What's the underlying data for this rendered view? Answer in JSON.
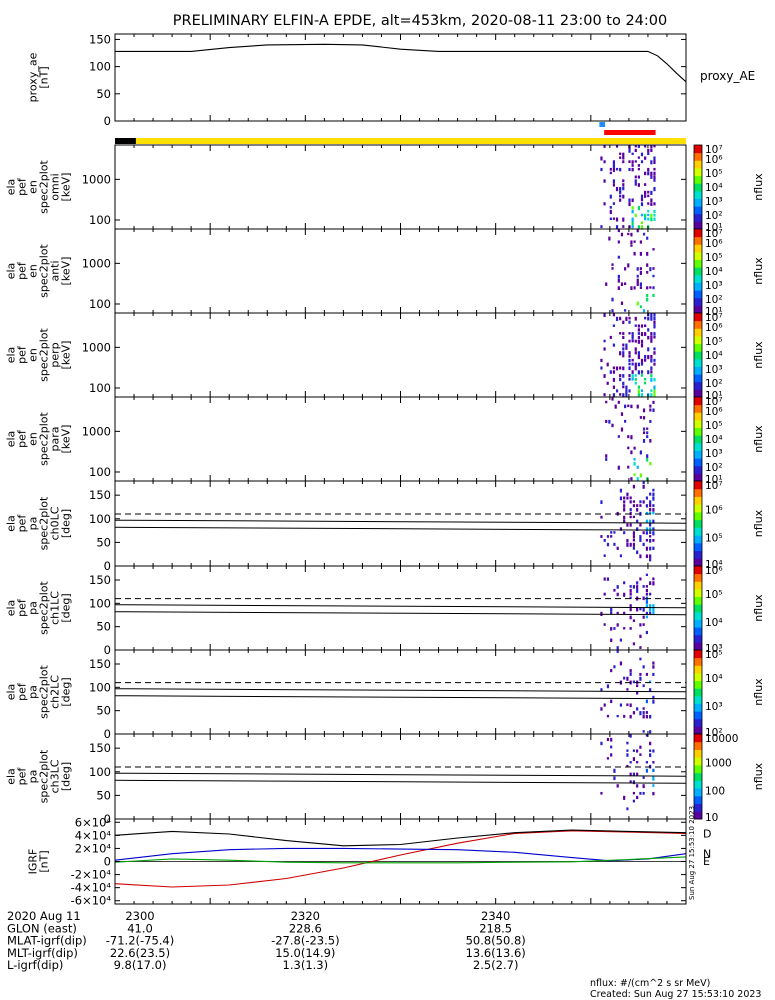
{
  "title": "PRELIMINARY ELFIN-A EPDE, alt=453km, 2020-08-11 23:00 to 24:00",
  "footer": {
    "units": "nflux: #/(cm^2 s sr MeV)",
    "created": "Created: Sun Aug 27 15:53:10 2023",
    "side_stamp": "Sun Aug 27 15:53:10 2023"
  },
  "colorbar_label": "nflux",
  "colorbar_colors": [
    "#ffffff",
    "#5a00a0",
    "#2a20d0",
    "#0060ff",
    "#00b0ff",
    "#00e0d0",
    "#00e060",
    "#60ff00",
    "#d0ff00",
    "#ffd000",
    "#ff7000",
    "#e00000"
  ],
  "orbit_table": {
    "rows": [
      {
        "label": "2020 Aug 11",
        "values": [
          "2300",
          "2320",
          "2340"
        ]
      },
      {
        "label": "GLON (east)",
        "values": [
          "41.0",
          "228.6",
          "218.5"
        ]
      },
      {
        "label": "MLAT-igrf(dip)",
        "values": [
          "-71.2(-75.4)",
          "-27.8(-23.5)",
          "50.8(50.8)"
        ]
      },
      {
        "label": "MLT-igrf(dip)",
        "values": [
          "22.6(23.5)",
          "15.0(14.9)",
          "13.6(13.6)"
        ]
      },
      {
        "label": "L-igrf(dip)",
        "values": [
          "9.8(17.0)",
          "1.3(1.3)",
          "2.5(2.7)"
        ]
      }
    ]
  },
  "chart_data": [
    {
      "id": "proxy_ae",
      "type": "line",
      "ylabel_lines": [
        "proxy_ae",
        "[nT]"
      ],
      "ylim": [
        0,
        160
      ],
      "yticks": [
        "0",
        "50",
        "100",
        "150"
      ],
      "legend": "proxy_AE",
      "x_minutes": [
        0,
        8,
        12,
        16,
        22,
        26,
        30,
        34,
        40,
        45,
        50,
        54,
        56,
        57,
        58,
        59,
        60
      ],
      "y": [
        128,
        128,
        135,
        140,
        141,
        140,
        132,
        128,
        128,
        128,
        128,
        128,
        128,
        120,
        105,
        88,
        72
      ]
    },
    {
      "id": "status_bars",
      "type": "bar",
      "bars": [
        {
          "start": 0,
          "end": 2.2,
          "color": "#000000"
        },
        {
          "start": 2.2,
          "end": 60,
          "color": "#ffe000"
        },
        {
          "start": 51.4,
          "end": 56.8,
          "color": "#ff0000"
        },
        {
          "start": 50.9,
          "end": 51.5,
          "color": "#1f8fff"
        }
      ]
    },
    {
      "id": "spec_omni",
      "type": "heatmap",
      "ylabel_lines": [
        "ela",
        "pef",
        "en",
        "spec2plot",
        "omni",
        "[keV]"
      ],
      "yscale": "log",
      "ylim": [
        60,
        7000
      ],
      "yticks": [
        "100",
        "1000"
      ],
      "colorbar": {
        "scale": "log",
        "range": [
          10,
          10000000
        ],
        "ticks": [
          "10¹",
          "10²",
          "10³",
          "10⁴",
          "10⁵",
          "10⁶",
          "10⁷"
        ]
      },
      "activity": [
        51.0,
        56.9
      ],
      "intensity": 0.9
    },
    {
      "id": "spec_anti",
      "type": "heatmap",
      "ylabel_lines": [
        "ela",
        "pef",
        "en",
        "spec2plot",
        "anti",
        "[keV]"
      ],
      "yscale": "log",
      "ylim": [
        60,
        7000
      ],
      "yticks": [
        "100",
        "1000"
      ],
      "colorbar": {
        "scale": "log",
        "range": [
          10,
          10000000
        ],
        "ticks": [
          "10¹",
          "10²",
          "10³",
          "10⁴",
          "10⁵",
          "10⁶",
          "10⁷"
        ]
      },
      "activity": [
        51.5,
        56.8
      ],
      "intensity": 0.3
    },
    {
      "id": "spec_perp",
      "type": "heatmap",
      "ylabel_lines": [
        "ela",
        "pef",
        "en",
        "spec2plot",
        "perp",
        "[keV]"
      ],
      "yscale": "log",
      "ylim": [
        60,
        7000
      ],
      "yticks": [
        "100",
        "1000"
      ],
      "colorbar": {
        "scale": "log",
        "range": [
          10,
          10000000
        ],
        "ticks": [
          "10¹",
          "10²",
          "10³",
          "10⁴",
          "10⁵",
          "10⁶",
          "10⁷"
        ]
      },
      "activity": [
        51.0,
        56.9
      ],
      "intensity": 0.85
    },
    {
      "id": "spec_para",
      "type": "heatmap",
      "ylabel_lines": [
        "ela",
        "pef",
        "en",
        "spec2plot",
        "para",
        "[keV]"
      ],
      "yscale": "log",
      "ylim": [
        60,
        7000
      ],
      "yticks": [
        "100",
        "1000"
      ],
      "colorbar": {
        "scale": "log",
        "range": [
          10,
          10000000
        ],
        "ticks": [
          "10¹",
          "10²",
          "10³",
          "10⁴",
          "10⁵",
          "10⁶",
          "10⁷"
        ]
      },
      "activity": [
        51.5,
        56.8
      ],
      "intensity": 0.3
    },
    {
      "id": "pa_ch0",
      "type": "heatmap",
      "ylabel_lines": [
        "ela",
        "pef",
        "pa",
        "spec2plot",
        "ch0LC",
        "[deg]"
      ],
      "ylim": [
        0,
        180
      ],
      "yticks": [
        "0",
        "50",
        "100",
        "150"
      ],
      "loss_cone_solid": [
        82,
        97
      ],
      "loss_cone_dashed": 110,
      "colorbar": {
        "scale": "log",
        "range": [
          10000,
          10000000
        ],
        "ticks": [
          "10⁴",
          "10⁵",
          "10⁶",
          "10⁷"
        ]
      },
      "activity": [
        51.0,
        56.8
      ],
      "intensity": 0.8
    },
    {
      "id": "pa_ch1",
      "type": "heatmap",
      "ylabel_lines": [
        "ela",
        "pef",
        "pa",
        "spec2plot",
        "ch1LC",
        "[deg]"
      ],
      "ylim": [
        0,
        180
      ],
      "yticks": [
        "0",
        "50",
        "100",
        "150"
      ],
      "loss_cone_solid": [
        82,
        97
      ],
      "loss_cone_dashed": 110,
      "colorbar": {
        "scale": "log",
        "range": [
          1000,
          1000000
        ],
        "ticks": [
          "10³",
          "10⁴",
          "10⁵",
          "10⁶"
        ]
      },
      "activity": [
        51.0,
        56.8
      ],
      "intensity": 0.5
    },
    {
      "id": "pa_ch2",
      "type": "heatmap",
      "ylabel_lines": [
        "ela",
        "pef",
        "pa",
        "spec2plot",
        "ch2LC",
        "[deg]"
      ],
      "ylim": [
        0,
        180
      ],
      "yticks": [
        "0",
        "50",
        "100",
        "150"
      ],
      "loss_cone_solid": [
        82,
        97
      ],
      "loss_cone_dashed": 110,
      "colorbar": {
        "scale": "log",
        "range": [
          100,
          100000
        ],
        "ticks": [
          "10²",
          "10³",
          "10⁴",
          "10⁵"
        ]
      },
      "activity": [
        51.0,
        56.8
      ],
      "intensity": 0.4
    },
    {
      "id": "pa_ch3",
      "type": "heatmap",
      "ylabel_lines": [
        "ela",
        "pef",
        "pa",
        "spec2plot",
        "ch3LC",
        "[deg]"
      ],
      "ylim": [
        0,
        180
      ],
      "yticks": [
        "0",
        "50",
        "100",
        "150"
      ],
      "loss_cone_solid": [
        82,
        97
      ],
      "loss_cone_dashed": 110,
      "colorbar": {
        "scale": "log",
        "range": [
          10,
          10000
        ],
        "ticks": [
          "10",
          "100",
          "1000",
          "10000"
        ]
      },
      "activity": [
        51.0,
        56.8
      ],
      "intensity": 0.5
    },
    {
      "id": "igrf",
      "type": "line",
      "ylabel_lines": [
        "IGRF",
        "[nT]"
      ],
      "ylim": [
        -65000,
        65000
      ],
      "yticks": [
        "-6×10⁴",
        "-4×10⁴",
        "-2×10⁴",
        "0",
        "2×10⁴",
        "4×10⁴",
        "6×10⁴"
      ],
      "series": [
        {
          "name": "D",
          "color": "#d00000",
          "x": [
            0,
            6,
            12,
            18,
            24,
            30,
            36,
            42,
            48,
            54,
            60
          ],
          "y": [
            -34000,
            -39000,
            -36000,
            -26000,
            -10000,
            10000,
            28000,
            43000,
            47000,
            45000,
            43000
          ]
        },
        {
          "name": "N",
          "color": "#0000cc",
          "x": [
            0,
            6,
            12,
            18,
            24,
            30,
            36,
            42,
            48,
            52,
            56,
            60
          ],
          "y": [
            2000,
            12000,
            18000,
            20000,
            20000,
            19000,
            18000,
            14000,
            6000,
            1000,
            4000,
            12000
          ]
        },
        {
          "name": "E",
          "color": "#00a000",
          "x": [
            0,
            6,
            12,
            18,
            24,
            30,
            36,
            42,
            48,
            54,
            60
          ],
          "y": [
            -1000,
            4000,
            2000,
            -1000,
            -2000,
            -2000,
            -2000,
            -1000,
            -500,
            3000,
            7000
          ]
        },
        {
          "name": "",
          "color": "#000000",
          "x": [
            0,
            6,
            12,
            18,
            24,
            30,
            36,
            42,
            48,
            54,
            60
          ],
          "y": [
            40000,
            46000,
            42000,
            32000,
            24000,
            26000,
            36000,
            44000,
            48000,
            46000,
            44000
          ]
        }
      ]
    }
  ]
}
